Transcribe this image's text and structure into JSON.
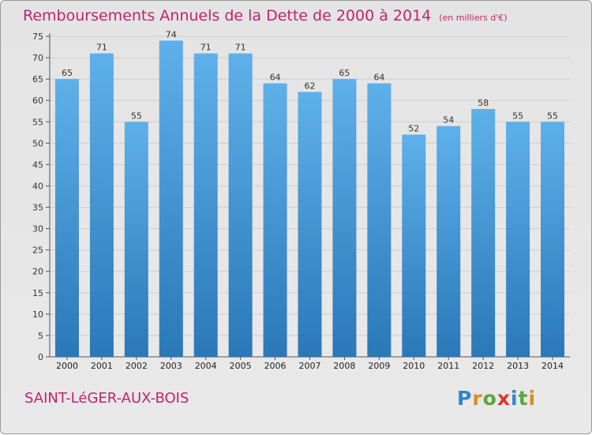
{
  "header": {
    "title": "Remboursements Annuels de la Dette de 2000 à 2014",
    "unit": "(en milliers d'€)"
  },
  "footer": {
    "commune": "SAINT-LéGER-AUX-BOIS",
    "brand": "Proxiti",
    "brand_letters": [
      "P",
      "r",
      "o",
      "x",
      "i",
      "t",
      "i"
    ],
    "brand_colors": [
      "#2e87c8",
      "#e08a1c",
      "#5aa63c",
      "#d93a2b",
      "#2e87c8",
      "#5aa63c",
      "#e08a1c"
    ]
  },
  "colors": {
    "title": "#c0246a",
    "bar_top": "#5eb0ea",
    "bar_bottom": "#2a78b8",
    "grid": "#cfcfcf"
  },
  "chart_data": {
    "type": "bar",
    "title": "Remboursements Annuels de la Dette de 2000 à 2014",
    "xlabel": "",
    "ylabel": "",
    "categories": [
      "2000",
      "2001",
      "2002",
      "2003",
      "2004",
      "2005",
      "2006",
      "2007",
      "2008",
      "2009",
      "2010",
      "2011",
      "2012",
      "2013",
      "2014"
    ],
    "values": [
      65,
      71,
      55,
      74,
      71,
      71,
      64,
      62,
      65,
      64,
      52,
      54,
      58,
      55,
      55
    ],
    "ylim": [
      0,
      75
    ],
    "yticks": [
      0,
      5,
      10,
      15,
      20,
      25,
      30,
      35,
      40,
      45,
      50,
      55,
      60,
      65,
      70,
      75
    ],
    "grid": true,
    "legend": "none"
  }
}
